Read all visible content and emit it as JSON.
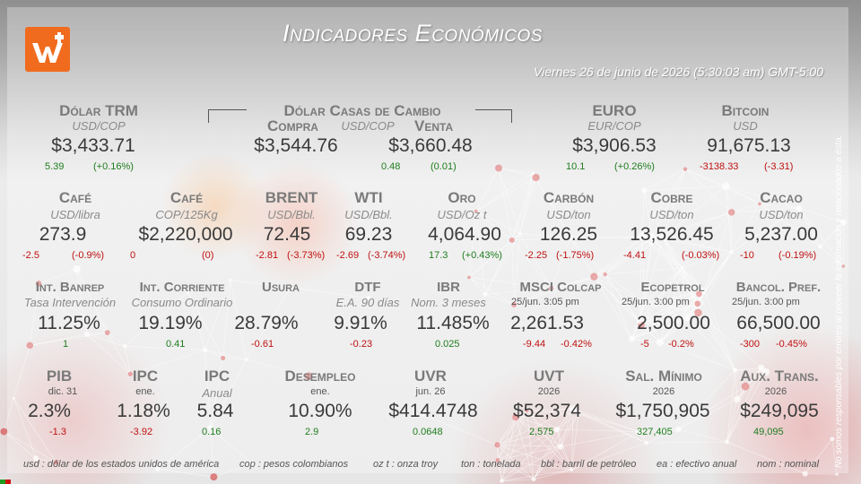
{
  "header": {
    "title": "Indicadores Económicos",
    "datetime": "Viernes 26 de junio de 2026 (5:30:03 am) GMT-5:00",
    "logo_icon": "logo-w-icon",
    "brand_color": "#f06b1e"
  },
  "row1": {
    "trm": {
      "title": "Dólar TRM",
      "unit": "USD/COP",
      "value": "$3,433.71",
      "delta": "5.39",
      "pct": "(+0.16%)"
    },
    "casas": {
      "title": "Dólar Casas de Cambio",
      "unit": "USD/COP",
      "compra_label": "Compra",
      "venta_label": "Venta",
      "compra": "$3,544.76",
      "venta": "$3,660.48",
      "delta": "0.48",
      "pct": "(0.01)"
    },
    "euro": {
      "title": "EURO",
      "unit": "EUR/COP",
      "value": "$3,906.53",
      "delta": "10.1",
      "pct": "(+0.26%)"
    },
    "bitcoin": {
      "title": "Bitcoin",
      "unit": "USD",
      "value": "91,675.13",
      "delta": "-3138.33",
      "pct": "(-3.31)"
    }
  },
  "row2": [
    {
      "title": "Café",
      "unit": "USD/libra",
      "value": "273.9",
      "delta": "-2.5",
      "pct": "(-0.9%)"
    },
    {
      "title": "Café",
      "unit": "COP/125Kg",
      "value": "$2,220,000",
      "delta": "0",
      "pct": "(0)"
    },
    {
      "title": "BRENT",
      "unit": "USD/Bbl.",
      "value": "72.45",
      "delta": "-2.81",
      "pct": "(-3.73%)"
    },
    {
      "title": "WTI",
      "unit": "USD/Bbl.",
      "value": "69.23",
      "delta": "-2.69",
      "pct": "(-3.74%)"
    },
    {
      "title": "Oro",
      "unit": "USD/Oz t",
      "value": "4,064.90",
      "delta": "17.3",
      "pct": "(+0.43%)"
    },
    {
      "title": "Carbón",
      "unit": "USD/ton",
      "value": "126.25",
      "delta": "-2.25",
      "pct": "(-1.75%)"
    },
    {
      "title": "Cobre",
      "unit": "USD/ton",
      "value": "13,526.45",
      "delta": "-4.41",
      "pct": "(-0.03%)"
    },
    {
      "title": "Cacao",
      "unit": "USD/ton",
      "value": "5,237.00",
      "delta": "-10",
      "pct": "(-0.19%)"
    }
  ],
  "row3": [
    {
      "title": "Int. Banrep",
      "sub": "Tasa Intervención",
      "value": "11.25%",
      "delta": "1"
    },
    {
      "title": "Int. Corriente",
      "sub": "Consumo Ordinario",
      "value": "19.19%",
      "delta": "0.41"
    },
    {
      "title": "Usura",
      "sub": "",
      "value": "28.79%",
      "delta": "-0.61"
    },
    {
      "title": "DTF",
      "sub": "E.A. 90 días",
      "value": "9.91%",
      "delta": "-0.23"
    },
    {
      "title": "IBR",
      "sub": "Nom. 3 meses",
      "value": "11.485%",
      "delta": "0.025"
    },
    {
      "title": "MSCI Colcap",
      "sub": "25/jun. 3:05 pm",
      "value": "2,261.53",
      "delta": "-9.44",
      "pct": "-0.42%"
    },
    {
      "title": "Ecopetrol",
      "sub": "25/jun. 3:00 pm",
      "value": "2,500.00",
      "delta": "-5",
      "pct": "-0.2%"
    },
    {
      "title": "Bancol. Pref.",
      "sub": "25/jun. 3:00 pm",
      "value": "66,500.00",
      "delta": "-300",
      "pct": "-0.45%"
    }
  ],
  "row4": [
    {
      "title": "PIB",
      "sub": "dic. 31",
      "value": "2.3%",
      "delta": "-1.3"
    },
    {
      "title": "IPC",
      "sub": "ene.",
      "value": "1.18%",
      "delta": "-3.92"
    },
    {
      "title": "IPC",
      "sub": "Anual",
      "value": "5.84",
      "delta": "0.16"
    },
    {
      "title": "Desempleo",
      "sub": "ene.",
      "value": "10.90%",
      "delta": "2.9"
    },
    {
      "title": "UVR",
      "sub": "jun. 26",
      "value": "$414.4748",
      "delta": "0.0648"
    },
    {
      "title": "UVT",
      "sub": "2026",
      "value": "$52,374",
      "delta": "2,575"
    },
    {
      "title": "Sal. Mínimo",
      "sub": "2026",
      "value": "$1,750,905",
      "delta": "327,405"
    },
    {
      "title": "Aux. Trans.",
      "sub": "2026",
      "value": "$249,095",
      "delta": "49,095"
    }
  ],
  "footer": {
    "usd": "usd : dólar de los estados unidos de américa",
    "cop": "cop : pesos colombianos",
    "oz": "oz t : onza troy",
    "ton": "ton : tonelada",
    "bbl": "bbl : barril de petróleo",
    "ea": "ea : efectivo anual",
    "nom": "nom : nominal"
  },
  "disclaimer": "No somos responsables por errores al proveer la información y relacionados a ésta.",
  "colors": {
    "positive": "#1e7d1e",
    "negative": "#c01010",
    "text": "#3a3a3a",
    "label": "#7a7a7a"
  }
}
